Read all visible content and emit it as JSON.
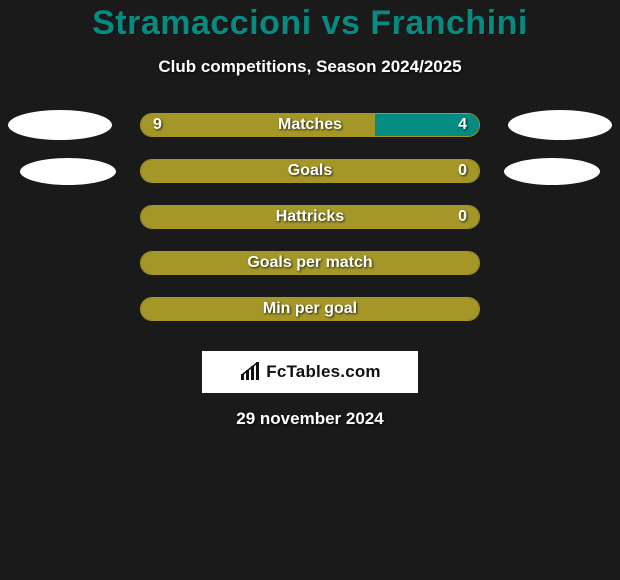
{
  "title": "Stramaccioni vs Franchini",
  "subtitle": "Club competitions, Season 2024/2025",
  "date": "29 november 2024",
  "brand": {
    "text": "FcTables.com"
  },
  "colors": {
    "title": "#048c82",
    "background": "#1a1a1a",
    "bar_left_fill": "#a49727",
    "bar_left_stroke": "#a59627",
    "bar_right_fill": "#048c82",
    "bar_full_fill": "#a49727",
    "avatar": "#ffffff",
    "text": "#ffffff"
  },
  "stats": [
    {
      "label": "Matches",
      "left_value": "9",
      "right_value": "4",
      "left_pct": 69.2,
      "right_pct": 30.8,
      "left_color": "#a49727",
      "right_color": "#048c82",
      "show_left_avatar": true,
      "show_right_avatar": true,
      "avatar_variant": 1
    },
    {
      "label": "Goals",
      "left_value": "",
      "right_value": "0",
      "left_pct": 100,
      "right_pct": 0,
      "left_color": "#a49727",
      "right_color": "#048c82",
      "show_left_avatar": true,
      "show_right_avatar": true,
      "avatar_variant": 2
    },
    {
      "label": "Hattricks",
      "left_value": "",
      "right_value": "0",
      "left_pct": 100,
      "right_pct": 0,
      "left_color": "#a49727",
      "right_color": "#048c82",
      "show_left_avatar": false,
      "show_right_avatar": false
    },
    {
      "label": "Goals per match",
      "left_value": "",
      "right_value": "",
      "left_pct": 100,
      "right_pct": 0,
      "left_color": "#a49727",
      "right_color": "#048c82",
      "show_left_avatar": false,
      "show_right_avatar": false
    },
    {
      "label": "Min per goal",
      "left_value": "",
      "right_value": "",
      "left_pct": 100,
      "right_pct": 0,
      "left_color": "#a49727",
      "right_color": "#048c82",
      "show_left_avatar": false,
      "show_right_avatar": false
    }
  ]
}
